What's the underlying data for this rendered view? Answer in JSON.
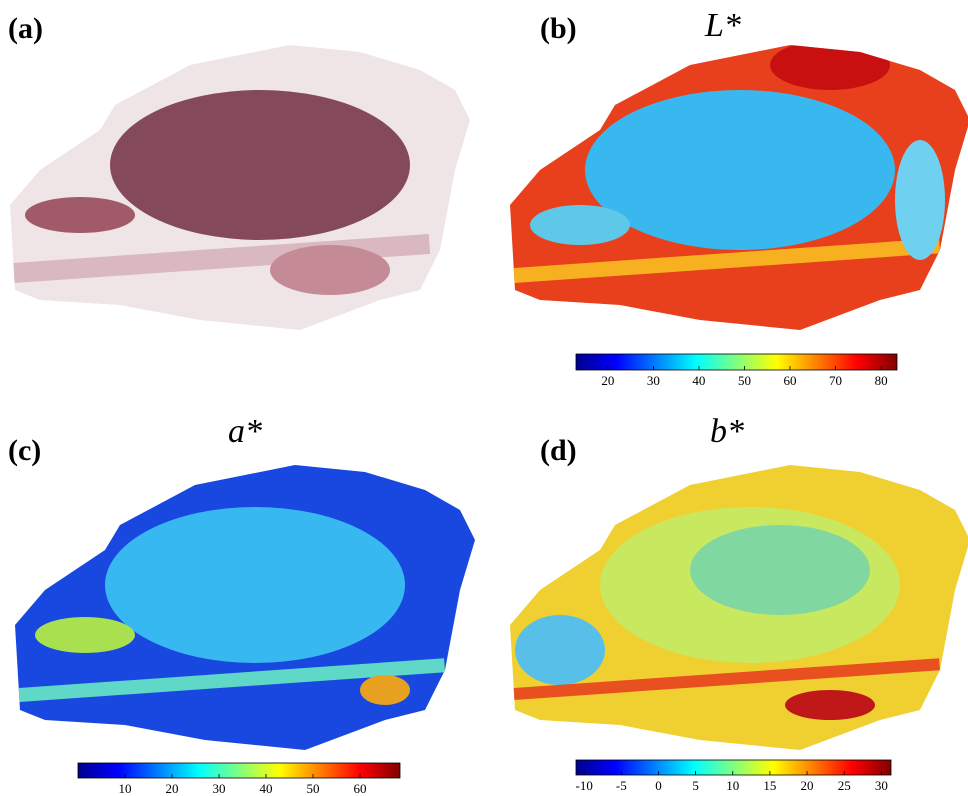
{
  "panels": [
    {
      "label": "(a)"
    },
    {
      "label": "(b)",
      "title": "L*",
      "colorbar": {
        "colormap": "jet",
        "lim": [
          13,
          83.5
        ],
        "ticks": [
          20,
          30,
          40,
          50,
          60,
          70,
          80
        ]
      }
    },
    {
      "label": "(c)",
      "title": "a*",
      "colorbar": {
        "colormap": "jet",
        "lim": [
          0,
          68.5
        ],
        "ticks": [
          10,
          20,
          30,
          40,
          50,
          60
        ]
      }
    },
    {
      "label": "(d)",
      "title": "b*",
      "colorbar": {
        "colormap": "jet",
        "lim": [
          -11.1,
          31.3
        ],
        "ticks": [
          -10,
          -5,
          0,
          5,
          10,
          15,
          20,
          25,
          30
        ]
      }
    }
  ]
}
